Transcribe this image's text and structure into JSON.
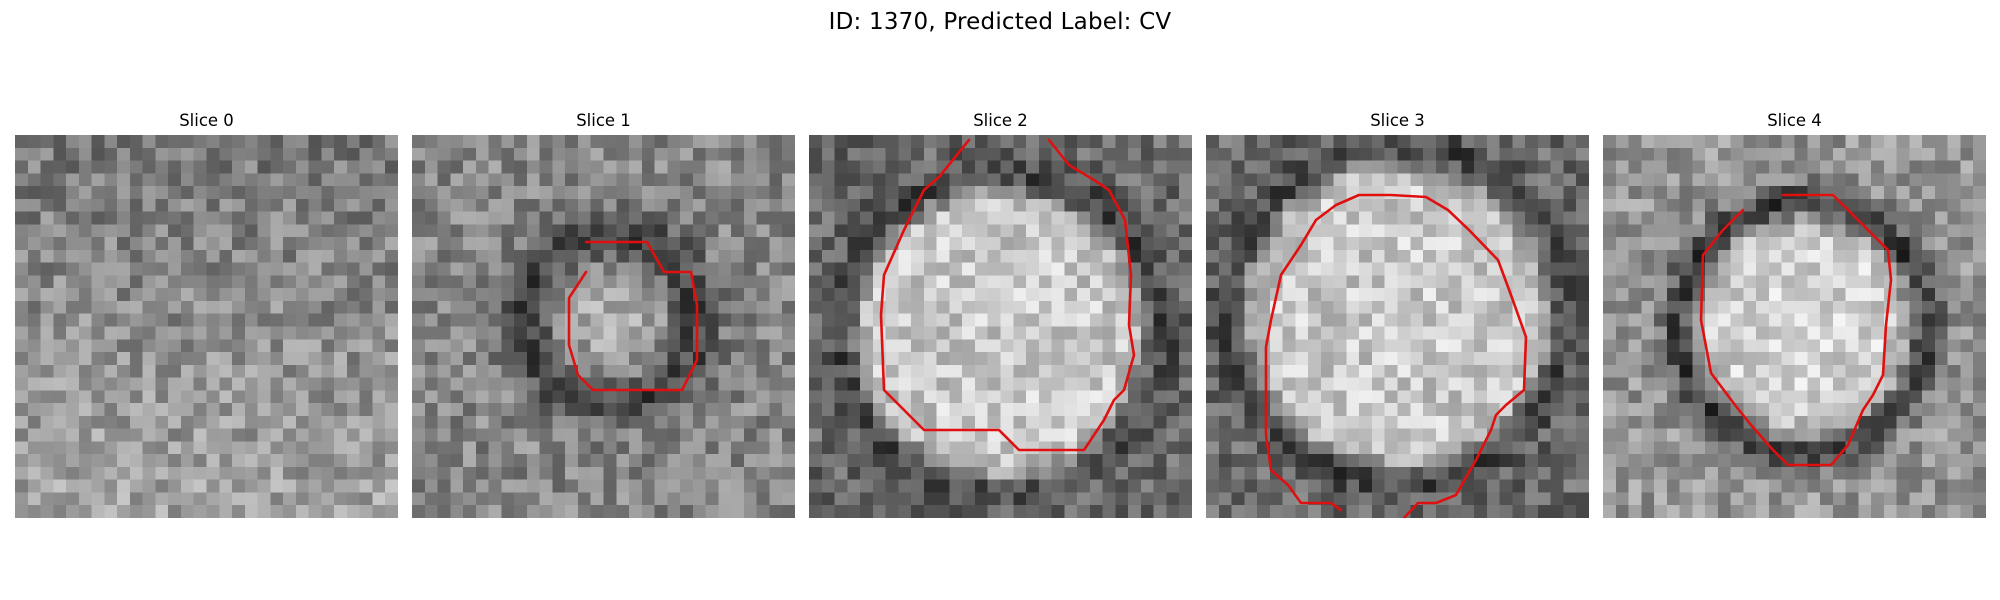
{
  "figure": {
    "title": "ID: 1370, Predicted Label: CV"
  },
  "colors": {
    "contour": "#e01010",
    "background": "#ffffff",
    "colormap": "gray"
  },
  "slices": [
    {
      "title": "Slice 0",
      "pattern": "noise",
      "center": [
        0.5,
        0.5
      ],
      "radius": 0.3,
      "seed": 11
    },
    {
      "title": "Slice 1",
      "pattern": "ring-dark",
      "center": [
        0.52,
        0.48
      ],
      "radius": 0.22,
      "seed": 23
    },
    {
      "title": "Slice 2",
      "pattern": "bright-core",
      "center": [
        0.5,
        0.52
      ],
      "radius": 0.34,
      "seed": 37
    },
    {
      "title": "Slice 3",
      "pattern": "bright-core",
      "center": [
        0.5,
        0.47
      ],
      "radius": 0.36,
      "seed": 41
    },
    {
      "title": "Slice 4",
      "pattern": "ring-bright-out",
      "center": [
        0.52,
        0.5
      ],
      "radius": 0.26,
      "seed": 59
    }
  ]
}
